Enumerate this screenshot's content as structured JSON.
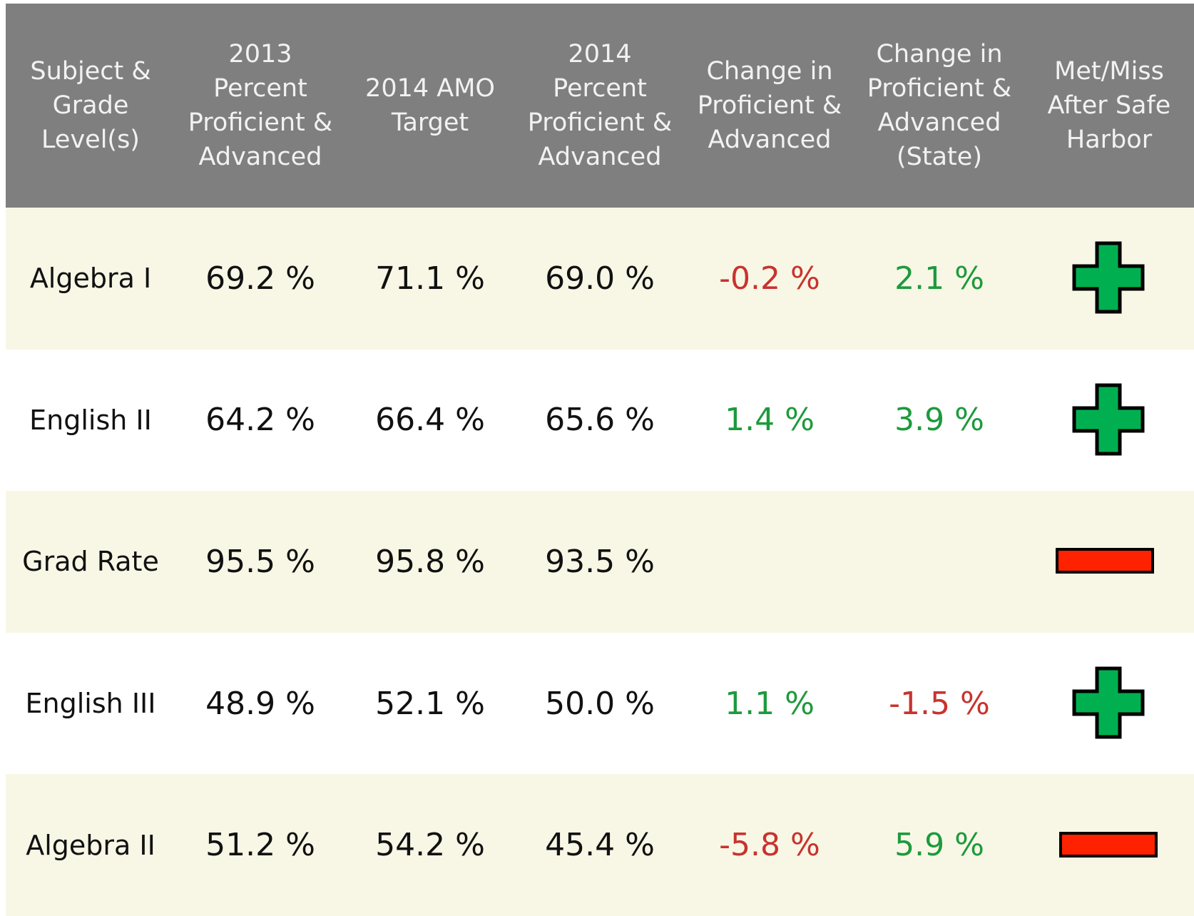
{
  "table": {
    "header": [
      "Subject & Grade Level(s)",
      "2013 Percent Proficient & Advanced",
      "2014 AMO Target",
      "2014 Percent Proficient & Advanced",
      "Change in Proficient & Advanced",
      "Change in Proficient & Advanced (State)",
      "Met/Miss After Safe Harbor"
    ],
    "rows": [
      [
        "Algebra I",
        "69.2 %",
        "71.1 %",
        "69.0 %",
        "-0.2 %",
        "2.1 %"
      ],
      [
        "English II",
        "64.2 %",
        "66.4 %",
        "65.6 %",
        "1.4 %",
        "3.9 %"
      ],
      [
        "Grad Rate",
        "95.5 %",
        "95.8 %",
        "93.5 %"
      ],
      [
        "English III",
        "48.9 %",
        "52.1 %",
        "50.0 %",
        "1.1 %",
        "-1.5 %"
      ],
      [
        "Algebra II",
        "51.2 %",
        "54.2 %",
        "45.4 %",
        "-5.8 %",
        "5.9 %"
      ]
    ]
  }
}
